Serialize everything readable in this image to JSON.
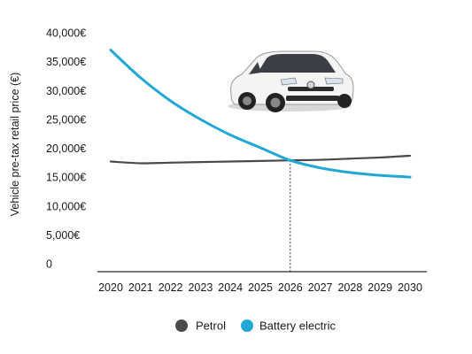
{
  "chart_data": {
    "type": "line",
    "ylabel": "Vehicle pre-tax retail price (€)",
    "ylim": [
      0,
      40000
    ],
    "yticks": [
      0,
      5000,
      10000,
      15000,
      20000,
      25000,
      30000,
      35000,
      40000
    ],
    "ytick_labels": [
      "0",
      "5,000€",
      "10,000€",
      "15,000€",
      "20,000€",
      "25,000€",
      "30,000€",
      "35,000€",
      "40,000€"
    ],
    "x": [
      2020,
      2021,
      2022,
      2023,
      2024,
      2025,
      2026,
      2027,
      2028,
      2029,
      2030
    ],
    "xtick_labels": [
      "2020",
      "2021",
      "2022",
      "2023",
      "2024",
      "2025",
      "2026",
      "2027",
      "2028",
      "2029",
      "2030"
    ],
    "series": [
      {
        "name": "Petrol",
        "color": "#4a4a4a",
        "values": [
          17700,
          17400,
          17500,
          17600,
          17700,
          17800,
          17900,
          18000,
          18200,
          18400,
          18700
        ]
      },
      {
        "name": "Battery electric",
        "color": "#22a8d6",
        "values": [
          37000,
          32200,
          28200,
          25000,
          22300,
          20100,
          17900,
          16600,
          15800,
          15300,
          15000
        ]
      }
    ],
    "annotation": {
      "type": "vertical-dotted-line",
      "x": 2026,
      "y": 17900
    },
    "legend": {
      "position": "bottom-center"
    },
    "grid": false,
    "illustration": "hatchback-car-image"
  }
}
